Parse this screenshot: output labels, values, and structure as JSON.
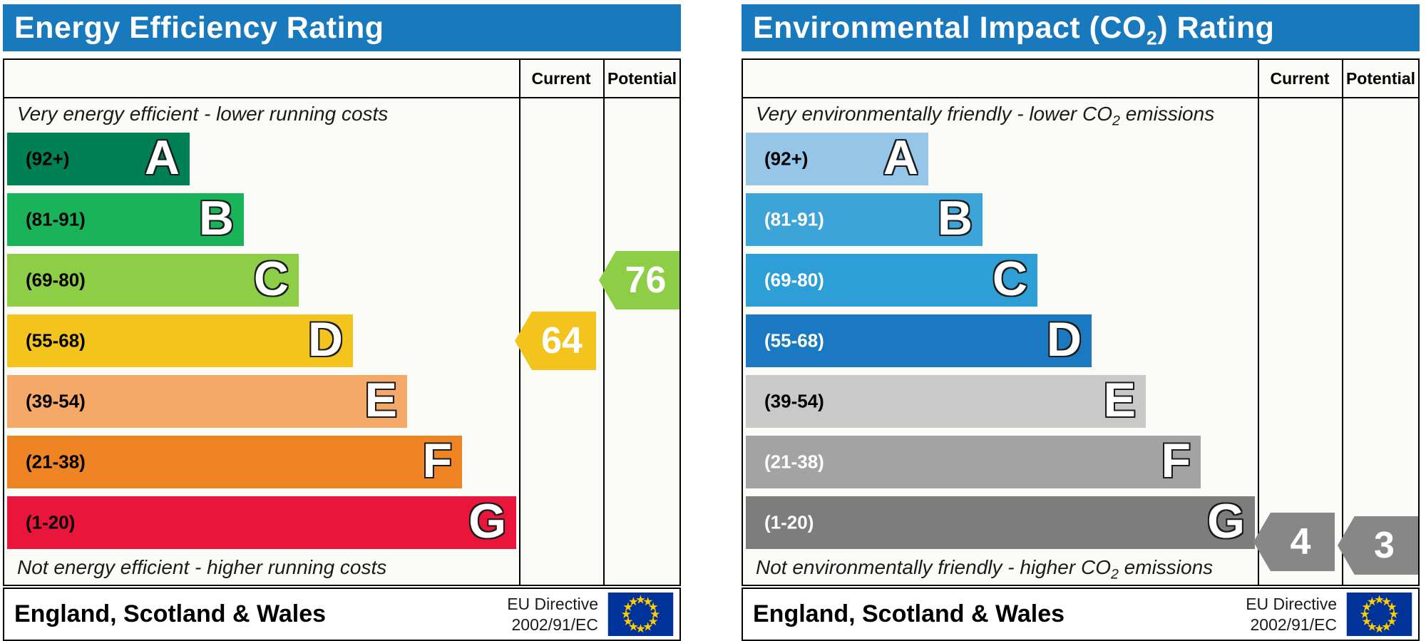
{
  "chart_data": [
    {
      "type": "bar",
      "title": "Energy Efficiency Rating",
      "categories": [
        "A",
        "B",
        "C",
        "D",
        "E",
        "F",
        "G"
      ],
      "band_ranges": [
        "92+",
        "81-91",
        "69-80",
        "55-68",
        "39-54",
        "21-38",
        "1-20"
      ],
      "current": {
        "value": 64,
        "band": "D"
      },
      "potential": {
        "value": 76,
        "band": "C"
      },
      "top_caption": "Very energy efficient - lower running costs",
      "bottom_caption": "Not energy efficient - higher running costs",
      "legend_position": "columns-right",
      "column_headers": [
        "Current",
        "Potential"
      ]
    },
    {
      "type": "bar",
      "title": "Environmental Impact (CO2) Rating",
      "categories": [
        "A",
        "B",
        "C",
        "D",
        "E",
        "F",
        "G"
      ],
      "band_ranges": [
        "92+",
        "81-91",
        "69-80",
        "55-68",
        "39-54",
        "21-38",
        "1-20"
      ],
      "current": {
        "value": 4,
        "band": "G"
      },
      "potential": {
        "value": 3,
        "band": "G"
      },
      "top_caption": "Very environmentally friendly - lower CO2 emissions",
      "bottom_caption": "Not environmentally friendly - higher CO2 emissions",
      "legend_position": "columns-right",
      "column_headers": [
        "Current",
        "Potential"
      ]
    }
  ],
  "energy": {
    "accent_color": "#1879bd",
    "title_parts": [
      "Energy Efficiency Rating"
    ],
    "header": {
      "current": "Current",
      "potential": "Potential"
    },
    "top_caption_parts": [
      "Very energy efficient - lower running costs"
    ],
    "bottom_caption_parts": [
      "Not energy efficient - higher running costs"
    ],
    "bands": [
      {
        "letter": "A",
        "range_label": "(92+)",
        "lo": 92,
        "hi": 100,
        "color": "#008054",
        "label_color": "#000000"
      },
      {
        "letter": "B",
        "range_label": "(81-91)",
        "lo": 81,
        "hi": 91,
        "color": "#19b459",
        "label_color": "#000000"
      },
      {
        "letter": "C",
        "range_label": "(69-80)",
        "lo": 69,
        "hi": 80,
        "color": "#8dce46",
        "label_color": "#000000"
      },
      {
        "letter": "D",
        "range_label": "(55-68)",
        "lo": 55,
        "hi": 68,
        "color": "#f2c41d",
        "label_color": "#000000"
      },
      {
        "letter": "E",
        "range_label": "(39-54)",
        "lo": 39,
        "hi": 54,
        "color": "#f5a968",
        "label_color": "#000000"
      },
      {
        "letter": "F",
        "range_label": "(21-38)",
        "lo": 21,
        "hi": 38,
        "color": "#ee8424",
        "label_color": "#000000"
      },
      {
        "letter": "G",
        "range_label": "(1-20)",
        "lo": 1,
        "hi": 20,
        "color": "#e9153b",
        "label_color": "#000000"
      }
    ],
    "current": {
      "value": "64",
      "band": "D",
      "color": "#f2c41d"
    },
    "potential": {
      "value": "76",
      "band": "C",
      "color": "#8dce46"
    },
    "footer": {
      "region": "England, Scotland & Wales",
      "directive_line1": "EU Directive",
      "directive_line2": "2002/91/EC",
      "flag_colors": {
        "field": "#003399",
        "stars": "#ffcc00"
      }
    }
  },
  "environment": {
    "accent_color": "#1879bd",
    "title_parts": [
      "Environmental Impact (CO",
      "2",
      ") Rating"
    ],
    "header": {
      "current": "Current",
      "potential": "Potential"
    },
    "top_caption_parts": [
      "Very environmentally friendly - lower CO",
      "2",
      " emissions"
    ],
    "bottom_caption_parts": [
      "Not environmentally friendly - higher CO",
      "2",
      " emissions"
    ],
    "bands": [
      {
        "letter": "A",
        "range_label": "(92+)",
        "lo": 92,
        "hi": 100,
        "color": "#95c6e8",
        "label_color": "#000000"
      },
      {
        "letter": "B",
        "range_label": "(81-91)",
        "lo": 81,
        "hi": 91,
        "color": "#3da4d9",
        "label_color": "#ffffff"
      },
      {
        "letter": "C",
        "range_label": "(69-80)",
        "lo": 69,
        "hi": 80,
        "color": "#2d9fd6",
        "label_color": "#ffffff"
      },
      {
        "letter": "D",
        "range_label": "(55-68)",
        "lo": 55,
        "hi": 68,
        "color": "#1a79c0",
        "label_color": "#ffffff"
      },
      {
        "letter": "E",
        "range_label": "(39-54)",
        "lo": 39,
        "hi": 54,
        "color": "#c9c9c9",
        "label_color": "#000000"
      },
      {
        "letter": "F",
        "range_label": "(21-38)",
        "lo": 21,
        "hi": 38,
        "color": "#a3a3a3",
        "label_color": "#ffffff"
      },
      {
        "letter": "G",
        "range_label": "(1-20)",
        "lo": 1,
        "hi": 20,
        "color": "#7d7d7d",
        "label_color": "#ffffff"
      }
    ],
    "current": {
      "value": "4",
      "band": "G",
      "color": "#878787"
    },
    "potential": {
      "value": "3",
      "band": "G",
      "color": "#878787"
    },
    "footer": {
      "region": "England, Scotland & Wales",
      "directive_line1": "EU Directive",
      "directive_line2": "2002/91/EC",
      "flag_colors": {
        "field": "#003399",
        "stars": "#ffcc00"
      }
    }
  }
}
